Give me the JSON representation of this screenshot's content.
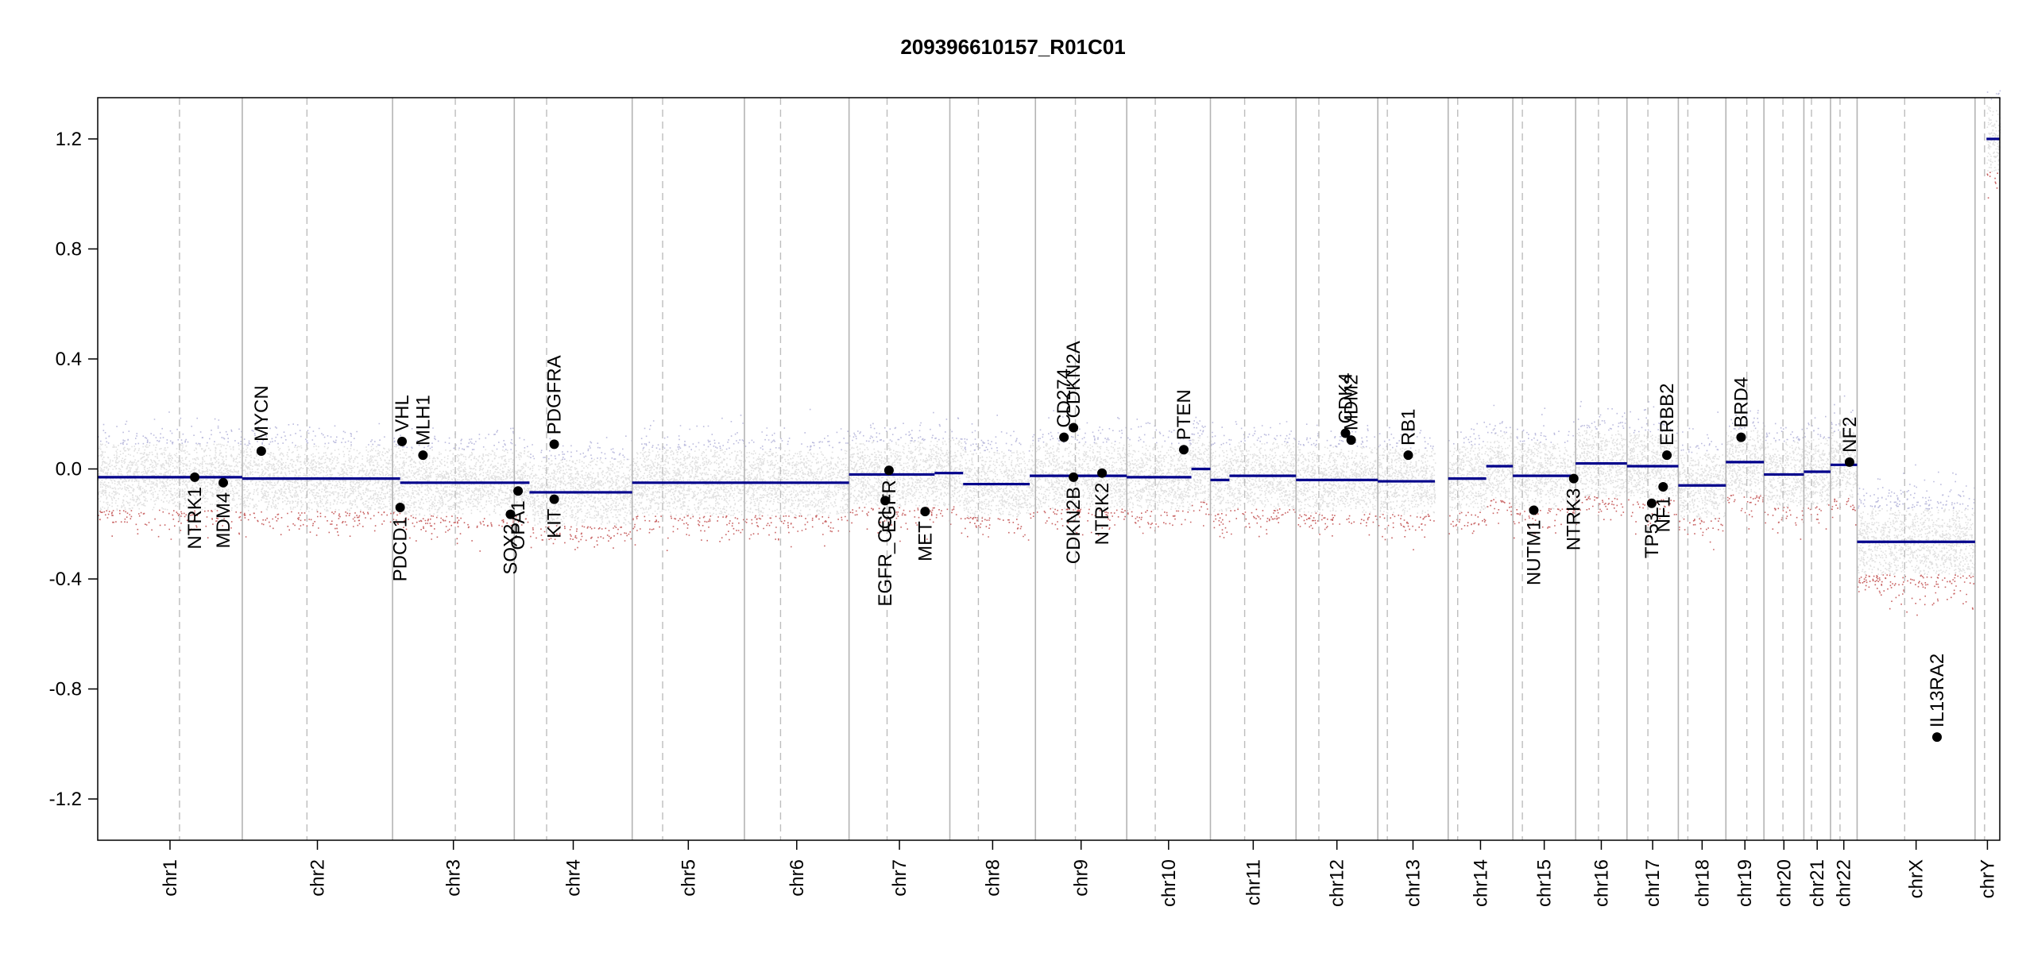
{
  "chart_data": {
    "type": "scatter",
    "title": "209396610157_R01C01",
    "xlabel": "",
    "ylabel": "",
    "ylim": [
      -1.35,
      1.35
    ],
    "yticks": [
      -1.2,
      -0.8,
      -0.4,
      0.0,
      0.4,
      0.8,
      1.2
    ],
    "ytick_labels": [
      "-1.2",
      "-0.8",
      "-0.4",
      "0.0",
      "0.4",
      "0.8",
      "1.2"
    ],
    "xlim": [
      0,
      100
    ],
    "grid": false,
    "colors": {
      "segment": "#00008b",
      "gain_probe": "#8f8fc8",
      "loss_probe": "#b22222",
      "neutral_probe": "#c8c8c8",
      "chrom_boundary": "#b4b4b4",
      "centromere": "#bdbdbd",
      "gene_point": "#000000"
    },
    "chromosomes": [
      {
        "name": "chr1",
        "start": 0.0,
        "end": 7.6,
        "centromere": 4.3
      },
      {
        "name": "chr2",
        "start": 7.6,
        "end": 15.5,
        "centromere": 11.0
      },
      {
        "name": "chr3",
        "start": 15.5,
        "end": 21.9,
        "centromere": 18.8
      },
      {
        "name": "chr4",
        "start": 21.9,
        "end": 28.1,
        "centromere": 23.6
      },
      {
        "name": "chr5",
        "start": 28.1,
        "end": 34.0,
        "centromere": 29.7
      },
      {
        "name": "chr6",
        "start": 34.0,
        "end": 39.5,
        "centromere": 35.9
      },
      {
        "name": "chr7",
        "start": 39.5,
        "end": 44.8,
        "centromere": 41.5
      },
      {
        "name": "chr8",
        "start": 44.8,
        "end": 49.3,
        "centromere": 46.3
      },
      {
        "name": "chr9",
        "start": 49.3,
        "end": 54.1,
        "centromere": 51.4
      },
      {
        "name": "chr10",
        "start": 54.1,
        "end": 58.5,
        "centromere": 55.6
      },
      {
        "name": "chr11",
        "start": 58.5,
        "end": 63.0,
        "centromere": 60.3
      },
      {
        "name": "chr12",
        "start": 63.0,
        "end": 67.3,
        "centromere": 64.2
      },
      {
        "name": "chr13",
        "start": 67.3,
        "end": 71.0,
        "centromere": 67.8
      },
      {
        "name": "chr14",
        "start": 71.0,
        "end": 74.4,
        "centromere": 71.5
      },
      {
        "name": "chr15",
        "start": 74.4,
        "end": 77.7,
        "centromere": 74.9
      },
      {
        "name": "chr16",
        "start": 77.7,
        "end": 80.4,
        "centromere": 78.9
      },
      {
        "name": "chr17",
        "start": 80.4,
        "end": 83.1,
        "centromere": 81.5
      },
      {
        "name": "chr18",
        "start": 83.1,
        "end": 85.6,
        "centromere": 83.6
      },
      {
        "name": "chr19",
        "start": 85.6,
        "end": 87.6,
        "centromere": 86.7
      },
      {
        "name": "chr20",
        "start": 87.6,
        "end": 89.7,
        "centromere": 88.6
      },
      {
        "name": "chr21",
        "start": 89.7,
        "end": 91.1,
        "centromere": 90.1
      },
      {
        "name": "chr22",
        "start": 91.1,
        "end": 92.5,
        "centromere": 91.6
      },
      {
        "name": "chrX",
        "start": 92.5,
        "end": 98.7,
        "centromere": 95.0
      },
      {
        "name": "chrY",
        "start": 98.7,
        "end": 100.0,
        "centromere": 99.2
      }
    ],
    "segments": [
      {
        "x0": 0.0,
        "x1": 7.6,
        "y": -0.03
      },
      {
        "x0": 7.6,
        "x1": 15.9,
        "y": -0.035
      },
      {
        "x0": 15.9,
        "x1": 22.7,
        "y": -0.05
      },
      {
        "x0": 22.7,
        "x1": 28.1,
        "y": -0.085
      },
      {
        "x0": 28.1,
        "x1": 39.5,
        "y": -0.05
      },
      {
        "x0": 39.5,
        "x1": 44.0,
        "y": -0.02
      },
      {
        "x0": 44.0,
        "x1": 45.5,
        "y": -0.015
      },
      {
        "x0": 45.5,
        "x1": 49.0,
        "y": -0.055
      },
      {
        "x0": 49.0,
        "x1": 51.5,
        "y": -0.025
      },
      {
        "x0": 51.5,
        "x1": 54.1,
        "y": -0.025
      },
      {
        "x0": 54.1,
        "x1": 57.5,
        "y": -0.03
      },
      {
        "x0": 57.5,
        "x1": 58.5,
        "y": 0.0
      },
      {
        "x0": 58.5,
        "x1": 59.5,
        "y": -0.04
      },
      {
        "x0": 59.5,
        "x1": 63.0,
        "y": -0.025
      },
      {
        "x0": 63.0,
        "x1": 67.3,
        "y": -0.04
      },
      {
        "x0": 67.3,
        "x1": 70.3,
        "y": -0.045
      },
      {
        "x0": 71.0,
        "x1": 73.0,
        "y": -0.035
      },
      {
        "x0": 73.0,
        "x1": 74.4,
        "y": 0.01
      },
      {
        "x0": 74.4,
        "x1": 77.7,
        "y": -0.025
      },
      {
        "x0": 77.7,
        "x1": 80.4,
        "y": 0.02
      },
      {
        "x0": 80.4,
        "x1": 83.1,
        "y": 0.01
      },
      {
        "x0": 83.1,
        "x1": 85.6,
        "y": -0.06
      },
      {
        "x0": 85.6,
        "x1": 87.6,
        "y": 0.025
      },
      {
        "x0": 87.6,
        "x1": 89.7,
        "y": -0.02
      },
      {
        "x0": 89.7,
        "x1": 91.1,
        "y": -0.01
      },
      {
        "x0": 91.1,
        "x1": 92.5,
        "y": 0.015
      },
      {
        "x0": 92.5,
        "x1": 98.7,
        "y": -0.265
      },
      {
        "x0": 99.3,
        "x1": 100.0,
        "y": 1.2
      }
    ],
    "genes": [
      {
        "name": "NTRK1",
        "x": 5.1,
        "y": -0.03,
        "label_side": "below"
      },
      {
        "name": "MDM4",
        "x": 6.6,
        "y": -0.05,
        "label_side": "below"
      },
      {
        "name": "MYCN",
        "x": 8.6,
        "y": 0.065,
        "label_side": "above"
      },
      {
        "name": "VHL",
        "x": 16.0,
        "y": 0.1,
        "label_side": "above"
      },
      {
        "name": "PDCD1",
        "x": 15.9,
        "y": -0.14,
        "label_side": "below"
      },
      {
        "name": "MLH1",
        "x": 17.1,
        "y": 0.05,
        "label_side": "above"
      },
      {
        "name": "SOX2",
        "x": 21.7,
        "y": -0.165,
        "label_side": "below"
      },
      {
        "name": "OPA1",
        "x": 22.1,
        "y": -0.08,
        "label_side": "below"
      },
      {
        "name": "PDGFRA",
        "x": 24.0,
        "y": 0.09,
        "label_side": "above"
      },
      {
        "name": "KIT",
        "x": 24.0,
        "y": -0.11,
        "label_side": "below"
      },
      {
        "name": "EGFR_CCI",
        "x": 41.4,
        "y": -0.115,
        "label_side": "below"
      },
      {
        "name": "EGFR",
        "x": 41.6,
        "y": -0.005,
        "label_side": "below"
      },
      {
        "name": "MET",
        "x": 43.5,
        "y": -0.155,
        "label_side": "below"
      },
      {
        "name": "CD274",
        "x": 50.8,
        "y": 0.115,
        "label_side": "above"
      },
      {
        "name": "CDKN2A",
        "x": 51.3,
        "y": 0.15,
        "label_side": "above"
      },
      {
        "name": "CDKN2B",
        "x": 51.3,
        "y": -0.03,
        "label_side": "below"
      },
      {
        "name": "NTRK2",
        "x": 52.8,
        "y": -0.015,
        "label_side": "below"
      },
      {
        "name": "PTEN",
        "x": 57.1,
        "y": 0.07,
        "label_side": "above"
      },
      {
        "name": "CDK4",
        "x": 65.6,
        "y": 0.13,
        "label_side": "above"
      },
      {
        "name": "MDM2",
        "x": 65.9,
        "y": 0.105,
        "label_side": "above"
      },
      {
        "name": "RB1",
        "x": 68.9,
        "y": 0.05,
        "label_side": "above"
      },
      {
        "name": "NUTM1",
        "x": 75.5,
        "y": -0.15,
        "label_side": "below"
      },
      {
        "name": "NTRK3",
        "x": 77.6,
        "y": -0.035,
        "label_side": "below"
      },
      {
        "name": "TP53",
        "x": 81.7,
        "y": -0.125,
        "label_side": "below"
      },
      {
        "name": "NF1",
        "x": 82.3,
        "y": -0.065,
        "label_side": "below"
      },
      {
        "name": "ERBB2",
        "x": 82.5,
        "y": 0.05,
        "label_side": "above"
      },
      {
        "name": "BRD4",
        "x": 86.4,
        "y": 0.115,
        "label_side": "above"
      },
      {
        "name": "NF2",
        "x": 92.1,
        "y": 0.025,
        "label_side": "above"
      },
      {
        "name": "IL13RA2",
        "x": 96.7,
        "y": -0.975,
        "label_side": "above"
      }
    ]
  }
}
